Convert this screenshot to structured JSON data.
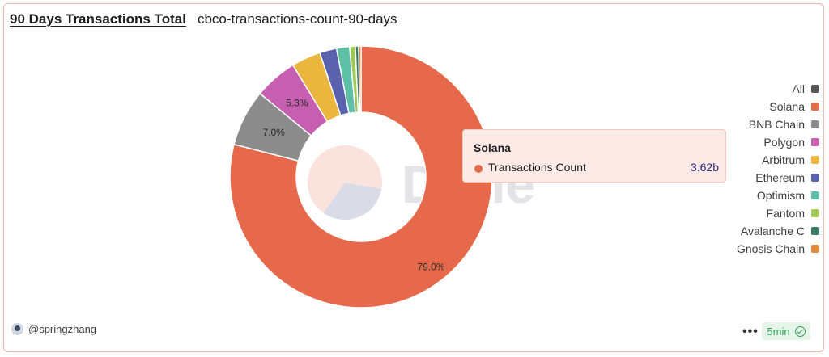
{
  "header": {
    "title": "90 Days Transactions Total",
    "subtitle": "cbco-transactions-count-90-days"
  },
  "watermark": "Dune",
  "chart_data": {
    "type": "pie",
    "donut": true,
    "labels": [
      "Solana",
      "BNB Chain",
      "Polygon",
      "Arbitrum",
      "Ethereum",
      "Optimism",
      "Fantom",
      "Avalanche C",
      "Gnosis Chain"
    ],
    "values": [
      79.0,
      7.0,
      5.3,
      3.6,
      2.1,
      1.6,
      0.7,
      0.4,
      0.3
    ],
    "value_unit": "%",
    "shown_labels": [
      "79.0%",
      "7.0%",
      "5.3%",
      "",
      "",
      "",
      "",
      "",
      ""
    ],
    "colors": [
      "#e5694a",
      "#8c8c8c",
      "#c65fb0",
      "#ebb63d",
      "#5b62ad",
      "#5cbfa6",
      "#9fc855",
      "#3b7a65",
      "#e28a3b"
    ],
    "legend_position": "right",
    "highlighted": "Solana"
  },
  "legend": {
    "items": [
      {
        "label": "All",
        "color": "#555555"
      },
      {
        "label": "Solana",
        "color": "#e5694a"
      },
      {
        "label": "BNB Chain",
        "color": "#8c8c8c"
      },
      {
        "label": "Polygon",
        "color": "#c65fb0"
      },
      {
        "label": "Arbitrum",
        "color": "#ebb63d"
      },
      {
        "label": "Ethereum",
        "color": "#5b62ad"
      },
      {
        "label": "Optimism",
        "color": "#5cbfa6"
      },
      {
        "label": "Fantom",
        "color": "#9fc855"
      },
      {
        "label": "Avalanche C",
        "color": "#3b7a65"
      },
      {
        "label": "Gnosis Chain",
        "color": "#e28a3b"
      }
    ]
  },
  "tooltip": {
    "title": "Solana",
    "series": "Transactions Count",
    "value": "3.62b",
    "color": "#e5694a"
  },
  "footer": {
    "user": "@springzhang",
    "more": "•••",
    "refresh": "5min"
  }
}
